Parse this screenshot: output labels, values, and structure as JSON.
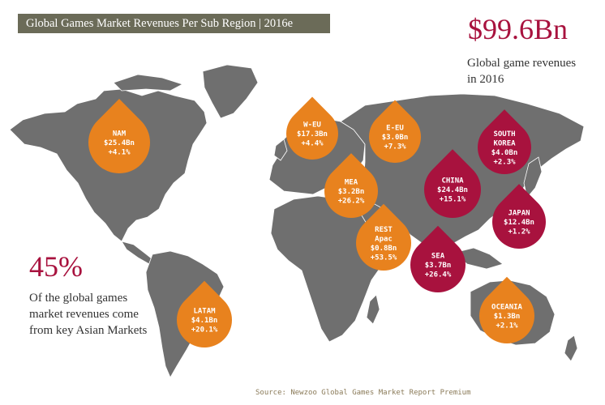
{
  "title": "Global Games Market Revenues Per Sub Region | 2016e",
  "total": {
    "value": "$99.6Bn",
    "caption": "Global game revenues in 2016"
  },
  "asia_share": {
    "value": "45%",
    "caption": "Of the global games market revenues come from key Asian Markets"
  },
  "source": "Source: Newzoo Global Games Market Report Premium",
  "colors": {
    "map": "#6f6f6f",
    "region_western": "#e8821e",
    "region_asia": "#a8123e",
    "title_bar": "#6b6b58"
  },
  "chart_data": {
    "type": "map",
    "unit": "Bn USD",
    "regions": [
      {
        "name": "NAM",
        "lines": [
          "NAM",
          "$25.4Bn",
          "+4.1%"
        ],
        "revenue": 25.4,
        "growth": 4.1,
        "group": "western"
      },
      {
        "name": "LATAM",
        "lines": [
          "LATAM",
          "$4.1Bn",
          "+20.1%"
        ],
        "revenue": 4.1,
        "growth": 20.1,
        "group": "western"
      },
      {
        "name": "W-EU",
        "lines": [
          "W-EU",
          "$17.3Bn",
          "+4.4%"
        ],
        "revenue": 17.3,
        "growth": 4.4,
        "group": "western"
      },
      {
        "name": "E-EU",
        "lines": [
          "E-EU",
          "$3.0Bn",
          "+7.3%"
        ],
        "revenue": 3.0,
        "growth": 7.3,
        "group": "western"
      },
      {
        "name": "MEA",
        "lines": [
          "MEA",
          "$3.2Bn",
          "+26.2%"
        ],
        "revenue": 3.2,
        "growth": 26.2,
        "group": "western"
      },
      {
        "name": "REST Apac",
        "lines": [
          "REST",
          "Apac",
          "$0.8Bn",
          "+53.5%"
        ],
        "revenue": 0.8,
        "growth": 53.5,
        "group": "western"
      },
      {
        "name": "OCEANIA",
        "lines": [
          "OCEANIA",
          "$1.3Bn",
          "+2.1%"
        ],
        "revenue": 1.3,
        "growth": 2.1,
        "group": "western"
      },
      {
        "name": "SOUTH KOREA",
        "lines": [
          "SOUTH",
          "KOREA",
          "$4.0Bn",
          "+2.3%"
        ],
        "revenue": 4.0,
        "growth": 2.3,
        "group": "asia"
      },
      {
        "name": "CHINA",
        "lines": [
          "CHINA",
          "$24.4Bn",
          "+15.1%"
        ],
        "revenue": 24.4,
        "growth": 15.1,
        "group": "asia"
      },
      {
        "name": "JAPAN",
        "lines": [
          "JAPAN",
          "$12.4Bn",
          "+1.2%"
        ],
        "revenue": 12.4,
        "growth": 1.2,
        "group": "asia"
      },
      {
        "name": "SEA",
        "lines": [
          "SEA",
          "$3.7Bn",
          "+26.4%"
        ],
        "revenue": 3.7,
        "growth": 26.4,
        "group": "asia"
      }
    ]
  }
}
